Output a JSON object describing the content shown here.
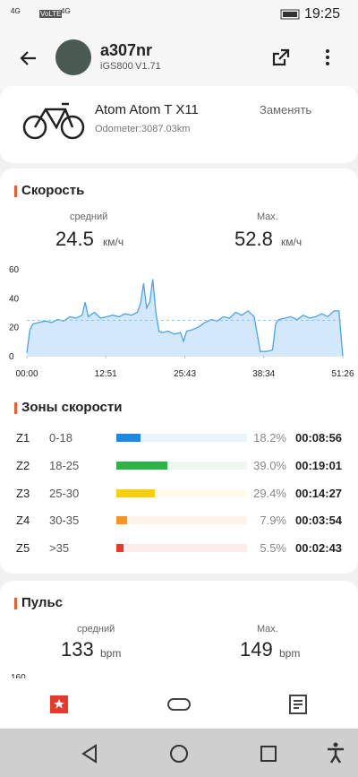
{
  "status_bar": {
    "network1": "4G",
    "network2": "VoLTE",
    "network3": "4G",
    "time": "19:25"
  },
  "header": {
    "username": "a307nr",
    "device": "iGS800",
    "version": "V1.71"
  },
  "bike": {
    "name": "Atom Atom T X11",
    "action": "Заменять",
    "odometer_label": "Odometer:",
    "odometer": "3087.03km"
  },
  "speed": {
    "title": "Скорость",
    "avg_label": "средний",
    "avg": 24.5,
    "avg_unit": "км/ч",
    "max_label": "Max.",
    "max": 52.8,
    "max_unit": "км/ч",
    "chart": {
      "type": "area",
      "color": "#4aa3f0",
      "x": [
        0,
        0.5,
        1,
        2,
        3,
        4,
        5,
        6,
        7,
        8,
        9,
        9.5,
        10,
        11,
        12,
        13,
        14,
        15,
        16,
        17,
        18,
        18.5,
        19,
        19.5,
        20,
        20.5,
        21,
        21.5,
        22,
        23,
        24,
        25,
        25.5,
        26,
        27,
        28,
        29,
        30,
        31,
        32,
        33,
        34,
        35,
        36,
        37,
        37.5,
        38,
        39,
        40,
        40.5,
        41,
        42,
        43,
        44,
        45,
        46,
        47,
        48,
        49,
        50,
        50.8,
        51.43
      ],
      "values": [
        2,
        18,
        22,
        23,
        24,
        23,
        25,
        24,
        27,
        26,
        28,
        37,
        27,
        30,
        26,
        27,
        28,
        27,
        29,
        28,
        30,
        36,
        50,
        33,
        37,
        52.8,
        30,
        17,
        16,
        17,
        15,
        16,
        10,
        17,
        18,
        20,
        23,
        25,
        24,
        27,
        26,
        30,
        28,
        31,
        27,
        15,
        3,
        3,
        4,
        22,
        25,
        26,
        27,
        25,
        28,
        26,
        27,
        29,
        27,
        31,
        31,
        0
      ],
      "xlim": [
        0,
        51.43
      ],
      "xticks": [
        {
          "value": 0,
          "label": "00:00"
        },
        {
          "value": 12.85,
          "label": "12:51"
        },
        {
          "value": 25.72,
          "label": "25:43"
        },
        {
          "value": 38.57,
          "label": "38:34"
        },
        {
          "value": 51.43,
          "label": "51:26"
        }
      ],
      "ylim": [
        0,
        60
      ],
      "yticks": [
        0,
        20,
        40,
        60
      ]
    }
  },
  "zones": {
    "title": "Зоны скорости",
    "rows": [
      {
        "name": "Z1",
        "range": "0-18",
        "percent": 18.2,
        "percent_label": "18.2%",
        "time": "00:08:56",
        "color": "#1e88e5",
        "track": "#eaf4fc"
      },
      {
        "name": "Z2",
        "range": "18-25",
        "percent": 39.0,
        "percent_label": "39.0%",
        "time": "00:19:01",
        "color": "#2db446",
        "track": "#eef8ef"
      },
      {
        "name": "Z3",
        "range": "25-30",
        "percent": 29.4,
        "percent_label": "29.4%",
        "time": "00:14:27",
        "color": "#f8cf0a",
        "track": "#fdfbec"
      },
      {
        "name": "Z4",
        "range": "30-35",
        "percent": 7.9,
        "percent_label": "7.9%",
        "time": "00:03:54",
        "color": "#f7941d",
        "track": "#fdf3ea"
      },
      {
        "name": "Z5",
        "range": ">35",
        "percent": 5.5,
        "percent_label": "5.5%",
        "time": "00:02:43",
        "color": "#e8392b",
        "track": "#fceceb"
      }
    ]
  },
  "pulse": {
    "title": "Пульс",
    "avg_label": "средний",
    "avg": 133,
    "avg_unit": "bpm",
    "max_label": "Max.",
    "max": 149,
    "max_unit": "bpm",
    "ytick_top": 160
  }
}
